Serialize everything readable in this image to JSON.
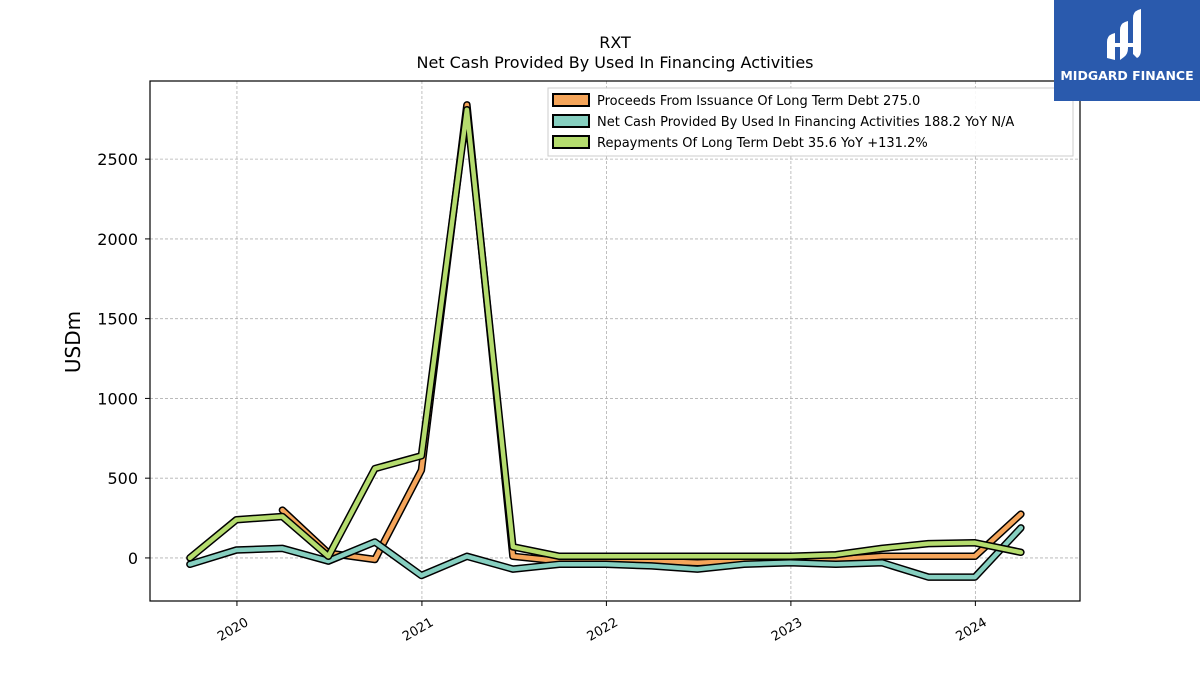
{
  "logo": {
    "text": "MIDGARD FINANCE",
    "bg_color": "#2a5aad"
  },
  "chart_data": {
    "type": "line",
    "title": "RXT",
    "subtitle": "Net Cash Provided By Used In Financing Activities",
    "ylabel": "USDm",
    "xlabel": "",
    "ylim": [
      -270,
      2990
    ],
    "xlim": [
      "2019-07-13",
      "2024-07-26"
    ],
    "yticks": [
      0,
      500,
      1000,
      1500,
      2000,
      2500
    ],
    "xticks": [
      {
        "date": "2020-01-01",
        "label": "2020"
      },
      {
        "date": "2021-01-01",
        "label": "2021"
      },
      {
        "date": "2022-01-01",
        "label": "2022"
      },
      {
        "date": "2023-01-01",
        "label": "2023"
      },
      {
        "date": "2024-01-01",
        "label": "2024"
      }
    ],
    "grid": true,
    "legend_position": "top-right",
    "series": [
      {
        "name": "Proceeds From Issuance Of Long Term Debt",
        "legend_label": "Proceeds From Issuance Of Long Term Debt  275.0",
        "color": "#f5a55a",
        "points": [
          [
            "2020-03-31",
            300
          ],
          [
            "2020-06-30",
            30
          ],
          [
            "2020-09-30",
            -10
          ],
          [
            "2020-12-31",
            550
          ],
          [
            "2021-03-31",
            2840
          ],
          [
            "2021-06-30",
            10
          ],
          [
            "2021-09-30",
            -20
          ],
          [
            "2021-12-31",
            -20
          ],
          [
            "2022-03-31",
            -20
          ],
          [
            "2022-06-30",
            -30
          ],
          [
            "2022-09-30",
            -20
          ],
          [
            "2022-12-31",
            -10
          ],
          [
            "2023-03-31",
            -10
          ],
          [
            "2023-06-30",
            10
          ],
          [
            "2023-09-30",
            10
          ],
          [
            "2023-12-31",
            10
          ],
          [
            "2024-03-31",
            275
          ]
        ]
      },
      {
        "name": "Net Cash Provided By Used In Financing Activities",
        "legend_label": "Net Cash Provided By Used In Financing Activities  188.2 YoY N/A",
        "color": "#86cfc0",
        "points": [
          [
            "2019-09-30",
            -40
          ],
          [
            "2019-12-31",
            50
          ],
          [
            "2020-03-31",
            60
          ],
          [
            "2020-06-30",
            -20
          ],
          [
            "2020-09-30",
            100
          ],
          [
            "2020-12-31",
            -110
          ],
          [
            "2021-03-31",
            10
          ],
          [
            "2021-06-30",
            -70
          ],
          [
            "2021-09-30",
            -40
          ],
          [
            "2021-12-31",
            -40
          ],
          [
            "2022-03-31",
            -50
          ],
          [
            "2022-06-30",
            -70
          ],
          [
            "2022-09-30",
            -40
          ],
          [
            "2022-12-31",
            -30
          ],
          [
            "2023-03-31",
            -40
          ],
          [
            "2023-06-30",
            -30
          ],
          [
            "2023-09-30",
            -120
          ],
          [
            "2023-12-31",
            -120
          ],
          [
            "2024-03-31",
            188.2
          ]
        ]
      },
      {
        "name": "Repayments Of Long Term Debt",
        "legend_label": "Repayments Of Long Term Debt  35.6 YoY +131.2%",
        "color": "#b5dc6e",
        "points": [
          [
            "2019-09-30",
            0
          ],
          [
            "2019-12-31",
            240
          ],
          [
            "2020-03-31",
            260
          ],
          [
            "2020-06-30",
            10
          ],
          [
            "2020-09-30",
            560
          ],
          [
            "2020-12-31",
            640
          ],
          [
            "2021-03-31",
            2810
          ],
          [
            "2021-06-30",
            70
          ],
          [
            "2021-09-30",
            10
          ],
          [
            "2021-12-31",
            10
          ],
          [
            "2022-03-31",
            10
          ],
          [
            "2022-06-30",
            10
          ],
          [
            "2022-09-30",
            10
          ],
          [
            "2022-12-31",
            10
          ],
          [
            "2023-03-31",
            20
          ],
          [
            "2023-06-30",
            60
          ],
          [
            "2023-09-30",
            90
          ],
          [
            "2023-12-31",
            95
          ],
          [
            "2024-03-31",
            35.6
          ]
        ]
      }
    ]
  }
}
